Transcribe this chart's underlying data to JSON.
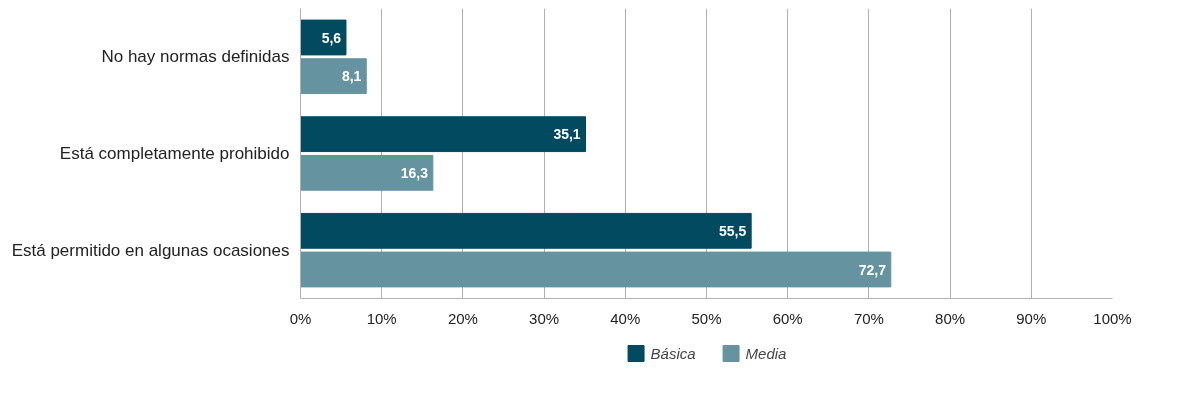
{
  "chart_data": {
    "type": "bar",
    "orientation": "horizontal",
    "categories": [
      "No hay normas definidas",
      "Está completamente prohibido",
      "Está permitido en algunas ocasiones"
    ],
    "series": [
      {
        "name": "Básica",
        "color": "#014a5f",
        "values": [
          5.6,
          35.1,
          55.5
        ],
        "value_labels": [
          "5,6",
          "35,1",
          "55,5"
        ]
      },
      {
        "name": "Media",
        "color": "#6693a0",
        "values": [
          8.1,
          16.3,
          72.7
        ],
        "value_labels": [
          "8,1",
          "16,3",
          "72,7"
        ]
      }
    ],
    "xlim": [
      0,
      100
    ],
    "xticks": [
      {
        "value": 0,
        "label": "0%"
      },
      {
        "value": 10,
        "label": "10%"
      },
      {
        "value": 20,
        "label": "20%"
      },
      {
        "value": 30,
        "label": "30%"
      },
      {
        "value": 40,
        "label": "40%"
      },
      {
        "value": 50,
        "label": "50%"
      },
      {
        "value": 60,
        "label": "60%"
      },
      {
        "value": 70,
        "label": "70%"
      },
      {
        "value": 80,
        "label": "80%"
      },
      {
        "value": 90,
        "label": "90%"
      },
      {
        "value": 100,
        "label": "100%"
      }
    ],
    "grid": "x",
    "legend": "bottom"
  }
}
